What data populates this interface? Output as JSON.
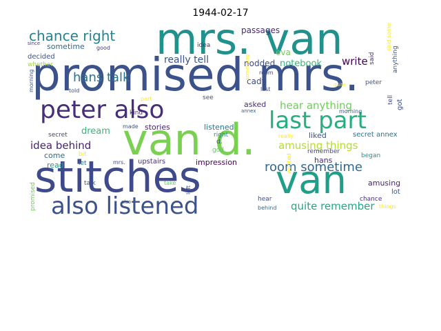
{
  "title": "1944-02-17",
  "words": [
    {
      "t": "promised mrs.",
      "c": "#3b528b"
    },
    {
      "t": "mrs. van",
      "c": "#21918c"
    },
    {
      "t": "stitches",
      "c": "#3e4a89"
    },
    {
      "t": "van d.",
      "c": "#7ad151"
    },
    {
      "t": "van",
      "c": "#1f9e89"
    },
    {
      "t": "peter also",
      "c": "#472d7b"
    },
    {
      "t": "also listened",
      "c": "#3b528b"
    },
    {
      "t": "last part",
      "c": "#27ad81"
    },
    {
      "t": "chance right",
      "c": "#26828e"
    },
    {
      "t": "hans talk",
      "c": "#2c728e"
    },
    {
      "t": "room sometime",
      "c": "#31688e"
    },
    {
      "t": "idea behind",
      "c": "#482173"
    },
    {
      "t": "amusing things",
      "c": "#b5de2b"
    },
    {
      "t": "hear anything",
      "c": "#6ece58"
    },
    {
      "t": "quite remember",
      "c": "#22a884"
    },
    {
      "t": "really tell",
      "c": "#3b528b"
    },
    {
      "t": "write",
      "c": "#440154"
    },
    {
      "t": "notebook",
      "c": "#35b779"
    },
    {
      "t": "passages",
      "c": "#482878"
    },
    {
      "t": "nodded",
      "c": "#3e4a89"
    },
    {
      "t": "eva",
      "c": "#6ece58"
    },
    {
      "t": "cady",
      "c": "#3e4a89"
    },
    {
      "t": "dream",
      "c": "#35b779"
    },
    {
      "t": "sometime",
      "c": "#31688e"
    },
    {
      "t": "decided",
      "c": "#3b528b"
    },
    {
      "t": "whether",
      "c": "#a0da39"
    },
    {
      "t": "idea",
      "c": "#472d7b"
    },
    {
      "t": "good",
      "c": "#443983"
    },
    {
      "t": "since",
      "c": "#443983"
    },
    {
      "t": "stories",
      "c": "#482173"
    },
    {
      "t": "listened",
      "c": "#2c728e"
    },
    {
      "t": "asked",
      "c": "#472d7b"
    },
    {
      "t": "liked",
      "c": "#3b528b"
    },
    {
      "t": "hans",
      "c": "#472d7b"
    },
    {
      "t": "secret annex",
      "c": "#2c728e"
    },
    {
      "t": "secret",
      "c": "#3e4a89"
    },
    {
      "t": "come",
      "c": "#31688e"
    },
    {
      "t": "bit",
      "c": "#fde725"
    },
    {
      "t": "read",
      "c": "#1f9e89"
    },
    {
      "t": "let",
      "c": "#2c728e"
    },
    {
      "t": "mrs.",
      "c": "#3e4a89"
    },
    {
      "t": "upstairs",
      "c": "#472d7b"
    },
    {
      "t": "impression",
      "c": "#440154"
    },
    {
      "t": "god",
      "c": "#5ec962"
    },
    {
      "t": "right",
      "c": "#21918c"
    },
    {
      "t": "d.",
      "c": "#3b528b"
    },
    {
      "t": "really",
      "c": "#fde725"
    },
    {
      "t": "remember",
      "c": "#3e4a89"
    },
    {
      "t": "began",
      "c": "#21918c"
    },
    {
      "t": "amusing",
      "c": "#481f70"
    },
    {
      "t": "lot",
      "c": "#3b528b"
    },
    {
      "t": "chance",
      "c": "#472d7b"
    },
    {
      "t": "things",
      "c": "#fde725"
    },
    {
      "t": "hear",
      "c": "#3e4a89"
    },
    {
      "t": "behind",
      "c": "#31688e"
    },
    {
      "t": "talk",
      "c": "#3b528b"
    },
    {
      "t": "take",
      "c": "#5ec962"
    },
    {
      "t": "also",
      "c": "#3b528b"
    },
    {
      "t": "see",
      "c": "#3b528b"
    },
    {
      "t": "made",
      "c": "#3b528b"
    },
    {
      "t": "kind",
      "c": "#472d7b"
    },
    {
      "t": "part",
      "c": "#fde725"
    },
    {
      "t": "told",
      "c": "#3e4a89"
    },
    {
      "t": "annex",
      "c": "#3b528b"
    },
    {
      "t": "morning",
      "c": "#3b528b"
    },
    {
      "t": "room",
      "c": "#3e4a89"
    },
    {
      "t": "last",
      "c": "#3e4a89"
    },
    {
      "t": "quite",
      "c": "#fde725"
    },
    {
      "t": "peter",
      "c": "#3b528b"
    },
    {
      "t": "tell",
      "c": "#3e4a89"
    },
    {
      "t": "got",
      "c": "#3e4a89"
    },
    {
      "t": "said something",
      "c": "#fde725"
    },
    {
      "t": "anything",
      "c": "#3b528b"
    },
    {
      "t": "said",
      "c": "#472d7b"
    },
    {
      "t": "something",
      "c": "#fde725"
    },
    {
      "t": "wanted",
      "c": "#fde725"
    },
    {
      "t": "left",
      "c": "#3e4a89"
    },
    {
      "t": "promised",
      "c": "#6ece58"
    }
  ]
}
